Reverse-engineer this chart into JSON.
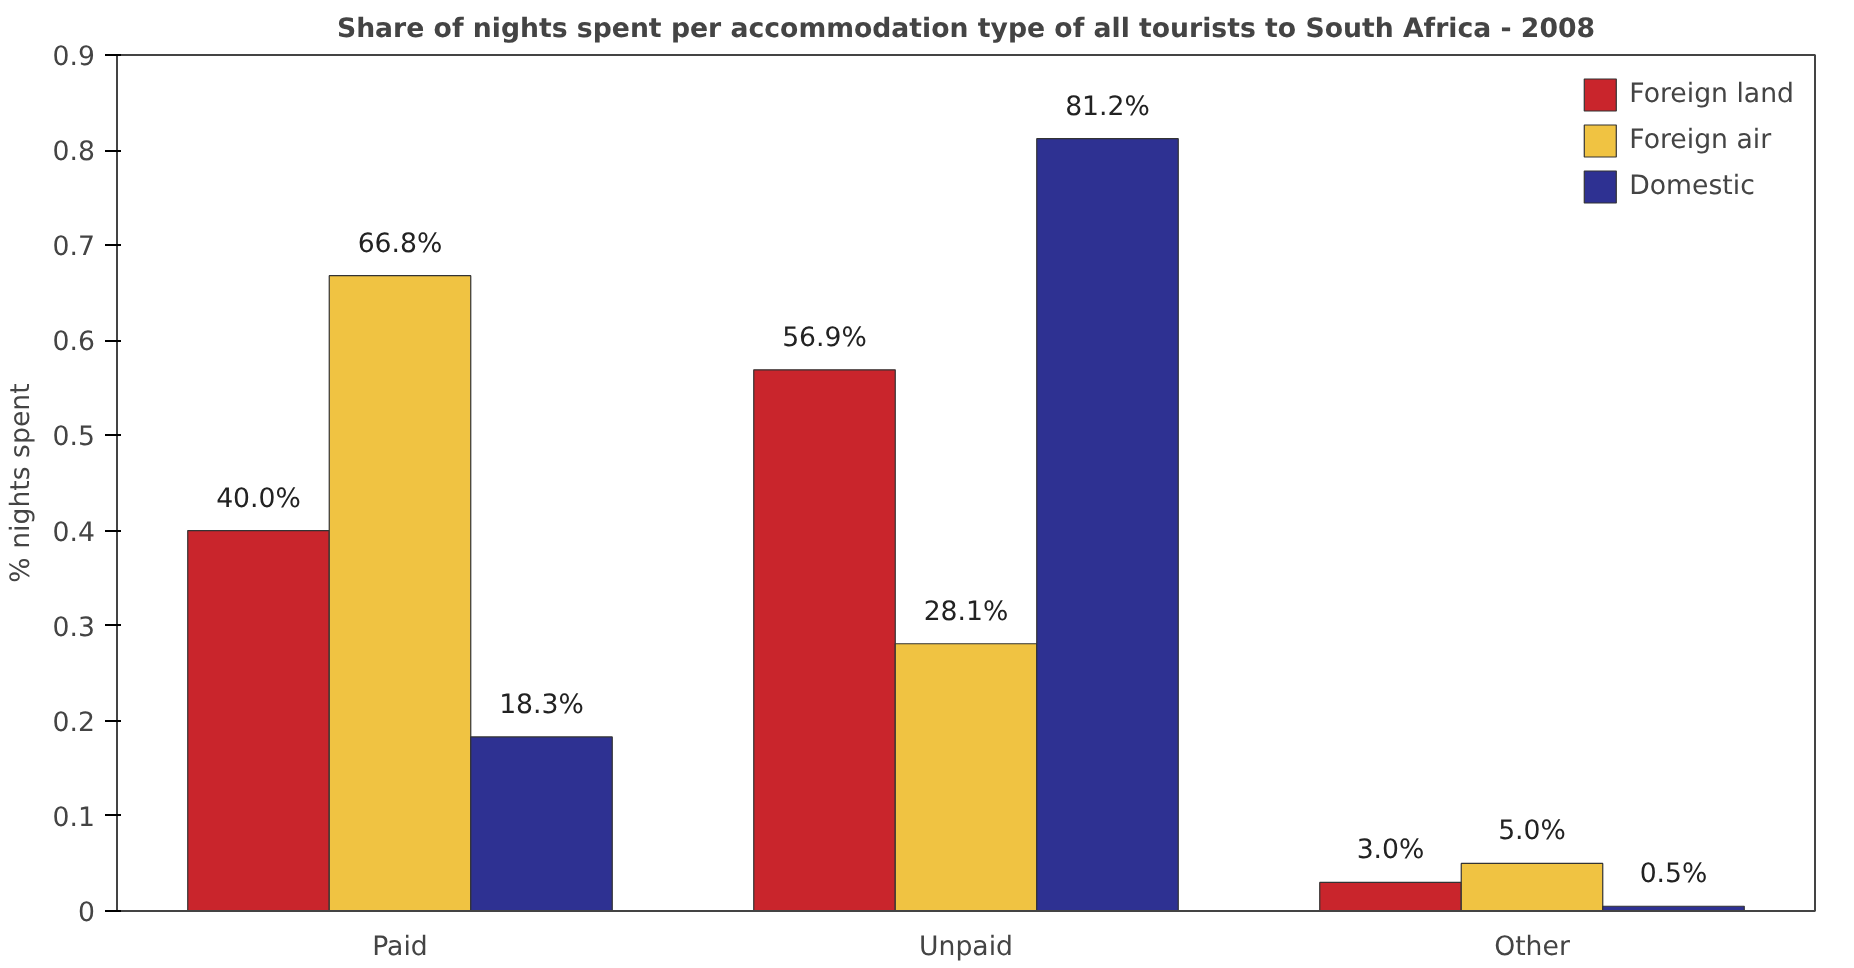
{
  "chart_data": {
    "type": "bar",
    "title": "Share of nights spent per accommodation type of all tourists to South Africa - 2008",
    "ylabel": "% nights spent",
    "categories": [
      "Paid",
      "Unpaid",
      "Other"
    ],
    "series": [
      {
        "name": "Foreign land",
        "color": "#c9252c",
        "values": [
          0.4,
          0.569,
          0.03
        ],
        "value_labels": [
          "40.0%",
          "56.9%",
          "3.0%"
        ]
      },
      {
        "name": "Foreign air",
        "color": "#f0c342",
        "values": [
          0.668,
          0.281,
          0.05
        ],
        "value_labels": [
          "66.8%",
          "28.1%",
          "5.0%"
        ]
      },
      {
        "name": "Domestic",
        "color": "#2e3192",
        "values": [
          0.183,
          0.812,
          0.005
        ],
        "value_labels": [
          "18.3%",
          "81.2%",
          "0.5%"
        ]
      }
    ],
    "ylim": [
      0,
      0.9
    ],
    "yticks": [
      0,
      0.1,
      0.2,
      0.3,
      0.4,
      0.5,
      0.6,
      0.7,
      0.8,
      0.9
    ],
    "grid": false,
    "legend": "top right"
  }
}
